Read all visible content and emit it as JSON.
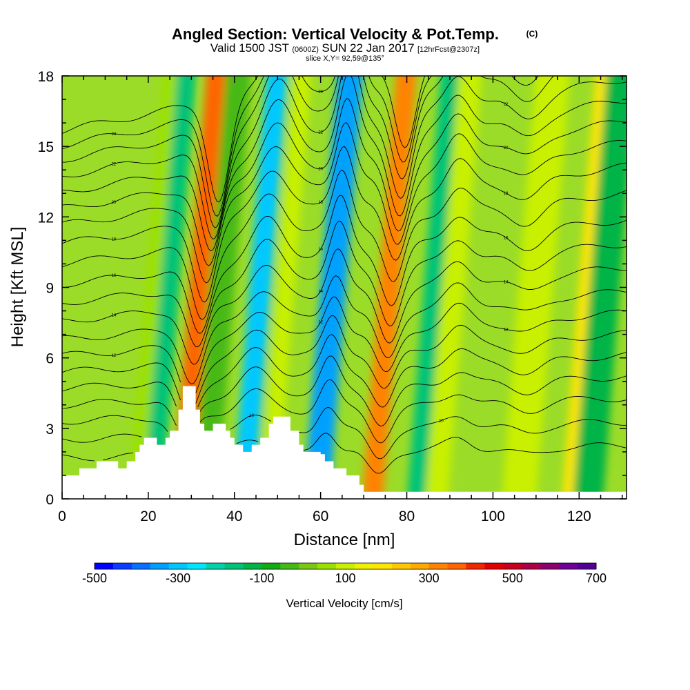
{
  "chart_data": {
    "type": "contour",
    "title": "Angled Section: Vertical Velocity & Pot.Temp.",
    "title_unit": "(C)",
    "subtitle": {
      "valid_prefix": "Valid 1500 JST",
      "utc": "(0600Z)",
      "date": "SUN 22 Jan 2017",
      "forecast": "[12hrFcst@2307z]"
    },
    "slice_label": "slice X,Y= 92,59@135°",
    "xlabel": "Distance [nm]",
    "ylabel": "Height [Kft MSL]",
    "xlim": [
      0,
      131
    ],
    "ylim": [
      0,
      18
    ],
    "x_ticks": [
      0,
      20,
      40,
      60,
      80,
      100,
      120
    ],
    "x_tick_labels": [
      "0",
      "20",
      "40",
      "60",
      "80",
      "100",
      "120"
    ],
    "y_ticks": [
      0,
      3,
      6,
      9,
      12,
      15,
      18
    ],
    "y_tick_labels": [
      "0",
      "3",
      "6",
      "9",
      "12",
      "15",
      "18"
    ],
    "colorbar": {
      "label": "Vertical Velocity [cm/s]",
      "min": -500,
      "max": 700,
      "step": 50,
      "tick_values": [
        -500,
        -300,
        -100,
        100,
        300,
        500,
        700
      ],
      "tick_labels": [
        "-500",
        "-300",
        "-100",
        "100",
        "300",
        "500",
        "700"
      ],
      "colors": [
        "#0000ff",
        "#0a3cff",
        "#0a6eff",
        "#00a0ff",
        "#00c8ff",
        "#00e6ff",
        "#00d2aa",
        "#00c378",
        "#00b446",
        "#14aa14",
        "#46b914",
        "#78c814",
        "#9be100",
        "#c8f000",
        "#f0f000",
        "#ffe600",
        "#ffc800",
        "#ffaa00",
        "#ff8200",
        "#ff6400",
        "#f02800",
        "#e10000",
        "#c8001e",
        "#aa0046",
        "#8c006e",
        "#6e0096",
        "#500096"
      ]
    },
    "vertical_velocity_bands": [
      {
        "x": 22,
        "w": 2.5,
        "value": 50
      },
      {
        "x": 25,
        "w": 2.2,
        "value": -150
      },
      {
        "x": 32,
        "w": 2.3,
        "value": 350
      },
      {
        "x": 37,
        "w": 3.0,
        "value": -50
      },
      {
        "x": 46,
        "w": 2.5,
        "value": -300
      },
      {
        "x": 52,
        "w": 2.0,
        "value": 100
      },
      {
        "x": 62,
        "w": 1.6,
        "value": -500
      },
      {
        "x": 63,
        "w": 3.0,
        "value": -350
      },
      {
        "x": 76,
        "w": 2.4,
        "value": 300
      },
      {
        "x": 86,
        "w": 2.0,
        "value": -150
      },
      {
        "x": 91,
        "w": 2.5,
        "value": 100
      },
      {
        "x": 110,
        "w": 4.0,
        "value": 100
      },
      {
        "x": 122,
        "w": 2.0,
        "value": 200
      },
      {
        "x": 126,
        "w": 3.5,
        "value": -120
      }
    ],
    "theta_contours": [
      {
        "base": 2.0,
        "label": ""
      },
      {
        "base": 2.9,
        "label": "10"
      },
      {
        "base": 3.8,
        "label": ""
      },
      {
        "base": 4.6,
        "label": ""
      },
      {
        "base": 5.4,
        "label": ""
      },
      {
        "base": 6.2,
        "label": ""
      },
      {
        "base": 7.0,
        "label": "12"
      },
      {
        "base": 7.8,
        "label": ""
      },
      {
        "base": 8.7,
        "label": "14"
      },
      {
        "base": 9.6,
        "label": ""
      },
      {
        "base": 10.5,
        "label": "16"
      },
      {
        "base": 11.5,
        "label": ""
      },
      {
        "base": 12.5,
        "label": "18"
      },
      {
        "base": 13.4,
        "label": ""
      },
      {
        "base": 14.2,
        "label": "20"
      },
      {
        "base": 15.0,
        "label": ""
      },
      {
        "base": 15.8,
        "label": "22"
      },
      {
        "base": 16.6,
        "label": ""
      },
      {
        "base": 17.3,
        "label": "24"
      },
      {
        "base": 18.0,
        "label": ""
      }
    ],
    "terrain": [
      {
        "x": 0,
        "h": 1.0
      },
      {
        "x": 4,
        "h": 1.3
      },
      {
        "x": 8,
        "h": 1.6
      },
      {
        "x": 13,
        "h": 1.3
      },
      {
        "x": 15,
        "h": 1.6
      },
      {
        "x": 17,
        "h": 2.0
      },
      {
        "x": 18,
        "h": 2.3
      },
      {
        "x": 19,
        "h": 2.6
      },
      {
        "x": 22,
        "h": 2.3
      },
      {
        "x": 24,
        "h": 2.6
      },
      {
        "x": 25,
        "h": 2.9
      },
      {
        "x": 27,
        "h": 3.8
      },
      {
        "x": 28,
        "h": 4.8
      },
      {
        "x": 31,
        "h": 3.8
      },
      {
        "x": 32,
        "h": 3.2
      },
      {
        "x": 33,
        "h": 2.9
      },
      {
        "x": 35,
        "h": 3.2
      },
      {
        "x": 38,
        "h": 2.9
      },
      {
        "x": 39,
        "h": 2.6
      },
      {
        "x": 40,
        "h": 2.3
      },
      {
        "x": 42,
        "h": 2.0
      },
      {
        "x": 44,
        "h": 2.3
      },
      {
        "x": 46,
        "h": 2.6
      },
      {
        "x": 48,
        "h": 3.2
      },
      {
        "x": 49,
        "h": 3.5
      },
      {
        "x": 53,
        "h": 2.9
      },
      {
        "x": 55,
        "h": 2.3
      },
      {
        "x": 56,
        "h": 2.0
      },
      {
        "x": 60,
        "h": 1.9
      },
      {
        "x": 61,
        "h": 1.6
      },
      {
        "x": 63,
        "h": 1.3
      },
      {
        "x": 66,
        "h": 1.0
      },
      {
        "x": 69,
        "h": 0.6
      },
      {
        "x": 70,
        "h": 0.3
      },
      {
        "x": 131,
        "h": 0.3
      }
    ]
  }
}
